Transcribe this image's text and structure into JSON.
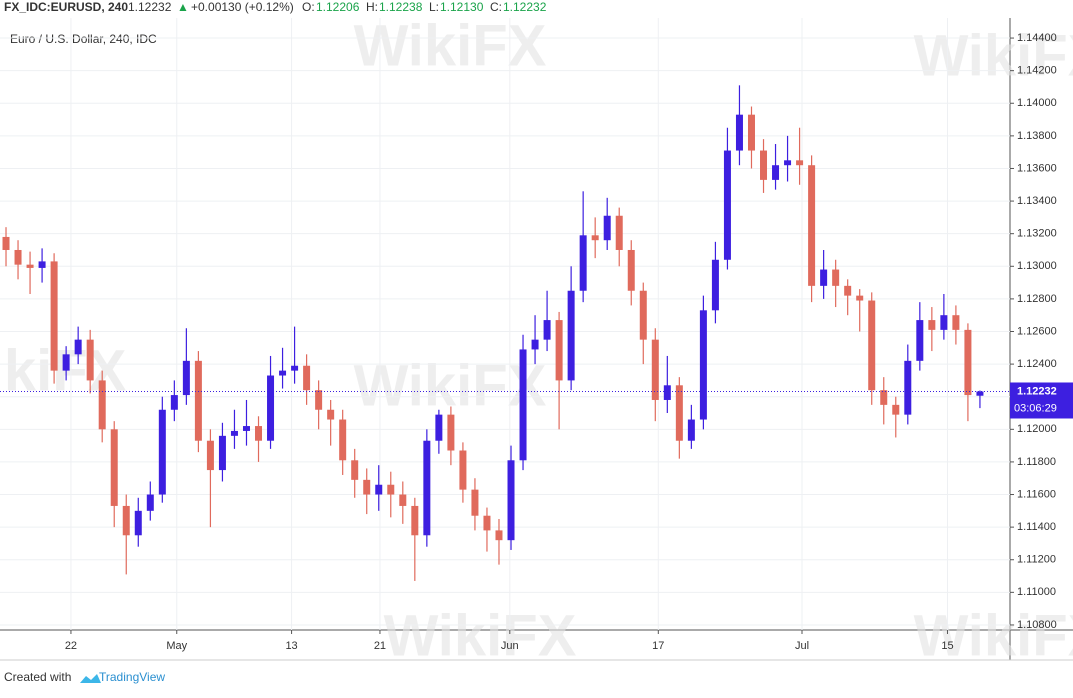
{
  "chart_data": {
    "type": "candlestick",
    "header": {
      "symbol": "FX_IDC:EURUSD, 240",
      "last": "1.12232",
      "arrow": "▲",
      "change": "+0.00130 (+0.12%)",
      "o_label": "O:",
      "o": "1.12206",
      "h_label": "H:",
      "h": "1.12238",
      "l_label": "L:",
      "l": "1.12130",
      "c_label": "C:",
      "c": "1.12232"
    },
    "title": "Euro / U.S. Dollar, 240, IDC",
    "watermark": "WikiFX",
    "countdown": "03:06:29",
    "footer": {
      "prefix": "Created with",
      "brand": "TradingView"
    },
    "up_color": "#3d1fe0",
    "down_color": "#e06a5c",
    "grid": true,
    "open": [
      1.1318,
      1.131,
      1.1301,
      1.1299,
      1.1303,
      1.1236,
      1.1246,
      1.1255,
      1.123,
      1.12,
      1.1153,
      1.1135,
      1.115,
      1.116,
      1.1212,
      1.1221,
      1.1242,
      1.1193,
      1.1175,
      1.1196,
      1.1199,
      1.1202,
      1.1193,
      1.1233,
      1.1236,
      1.1239,
      1.1224,
      1.1212,
      1.1206,
      1.1181,
      1.1169,
      1.116,
      1.1166,
      1.116,
      1.1153,
      1.1135,
      1.1193,
      1.1209,
      1.1187,
      1.1163,
      1.1147,
      1.1138,
      1.1132,
      1.1181,
      1.1249,
      1.1255,
      1.1267,
      1.123,
      1.1285,
      1.1319,
      1.1316,
      1.1331,
      1.131,
      1.1285,
      1.1255,
      1.1218,
      1.1227,
      1.1193,
      1.1206,
      1.1273,
      1.1304,
      1.1371,
      1.1393,
      1.1371,
      1.1353,
      1.1362,
      1.1365,
      1.1362,
      1.1288,
      1.1298,
      1.1288,
      1.1282,
      1.1279,
      1.1224,
      1.1215,
      1.1209,
      1.1242,
      1.1267,
      1.1261,
      1.127,
      1.1261,
      1.12206
    ],
    "high": [
      1.1324,
      1.1316,
      1.1309,
      1.1311,
      1.1308,
      1.1251,
      1.1263,
      1.1261,
      1.1236,
      1.1205,
      1.116,
      1.1158,
      1.1168,
      1.122,
      1.123,
      1.1262,
      1.1248,
      1.12,
      1.1204,
      1.1212,
      1.1218,
      1.1208,
      1.1245,
      1.125,
      1.1263,
      1.1246,
      1.123,
      1.1218,
      1.1212,
      1.1188,
      1.1176,
      1.1178,
      1.1174,
      1.1168,
      1.1158,
      1.12,
      1.1212,
      1.1214,
      1.1192,
      1.117,
      1.1152,
      1.1145,
      1.119,
      1.1258,
      1.127,
      1.1285,
      1.1272,
      1.13,
      1.1346,
      1.133,
      1.1342,
      1.1336,
      1.1316,
      1.129,
      1.1262,
      1.1245,
      1.1232,
      1.1215,
      1.1282,
      1.1315,
      1.1385,
      1.1411,
      1.1398,
      1.1378,
      1.1375,
      1.138,
      1.1385,
      1.1368,
      1.131,
      1.1304,
      1.1292,
      1.1286,
      1.1284,
      1.1232,
      1.122,
      1.1252,
      1.1278,
      1.1275,
      1.1283,
      1.1276,
      1.1265,
      1.12238
    ],
    "low": [
      1.13,
      1.1292,
      1.1283,
      1.129,
      1.1228,
      1.123,
      1.124,
      1.1222,
      1.1192,
      1.114,
      1.1111,
      1.1128,
      1.1144,
      1.1155,
      1.1205,
      1.1215,
      1.1186,
      1.114,
      1.1168,
      1.1188,
      1.119,
      1.118,
      1.1188,
      1.1225,
      1.1228,
      1.1215,
      1.12,
      1.119,
      1.1172,
      1.1158,
      1.1148,
      1.115,
      1.1146,
      1.1142,
      1.1107,
      1.1128,
      1.1185,
      1.1178,
      1.1155,
      1.1138,
      1.1125,
      1.1117,
      1.1126,
      1.1175,
      1.124,
      1.1248,
      1.12,
      1.1224,
      1.1278,
      1.1305,
      1.131,
      1.13,
      1.1276,
      1.124,
      1.1205,
      1.121,
      1.1182,
      1.1188,
      1.12,
      1.1265,
      1.1298,
      1.1362,
      1.136,
      1.1345,
      1.1347,
      1.1352,
      1.135,
      1.1278,
      1.128,
      1.1275,
      1.127,
      1.126,
      1.1215,
      1.1203,
      1.1195,
      1.1203,
      1.1236,
      1.1248,
      1.1255,
      1.1252,
      1.1205,
      1.1213
    ],
    "close": [
      1.131,
      1.1301,
      1.1299,
      1.1303,
      1.1236,
      1.1246,
      1.1255,
      1.123,
      1.12,
      1.1153,
      1.1135,
      1.115,
      1.116,
      1.1212,
      1.1221,
      1.1242,
      1.1193,
      1.1175,
      1.1196,
      1.1199,
      1.1202,
      1.1193,
      1.1233,
      1.1236,
      1.1239,
      1.1224,
      1.1212,
      1.1206,
      1.1181,
      1.1169,
      1.116,
      1.1166,
      1.116,
      1.1153,
      1.1135,
      1.1193,
      1.1209,
      1.1187,
      1.1163,
      1.1147,
      1.1138,
      1.1132,
      1.1181,
      1.1249,
      1.1255,
      1.1267,
      1.123,
      1.1285,
      1.1319,
      1.1316,
      1.1331,
      1.131,
      1.1285,
      1.1255,
      1.1218,
      1.1227,
      1.1193,
      1.1206,
      1.1273,
      1.1304,
      1.1371,
      1.1393,
      1.1371,
      1.1353,
      1.1362,
      1.1365,
      1.1362,
      1.1288,
      1.1298,
      1.1288,
      1.1282,
      1.1279,
      1.1224,
      1.1215,
      1.1209,
      1.1242,
      1.1267,
      1.1261,
      1.127,
      1.1261,
      1.1221,
      1.12232
    ],
    "xlim": [
      -0.5,
      83.5
    ],
    "xticks": [
      {
        "value": 5.4,
        "label": "22"
      },
      {
        "value": 14.2,
        "label": "May"
      },
      {
        "value": 23.75,
        "label": "13"
      },
      {
        "value": 31.1,
        "label": "21"
      },
      {
        "value": 41.9,
        "label": "Jun"
      },
      {
        "value": 54.25,
        "label": "17"
      },
      {
        "value": 66.2,
        "label": "Jul"
      },
      {
        "value": 78.3,
        "label": "15"
      }
    ],
    "ylim": [
      1.10769,
      1.14523
    ],
    "yticks": [
      {
        "value": 1.108,
        "label": "1.10800"
      },
      {
        "value": 1.11,
        "label": "1.11000"
      },
      {
        "value": 1.112,
        "label": "1.11200"
      },
      {
        "value": 1.114,
        "label": "1.11400"
      },
      {
        "value": 1.116,
        "label": "1.11600"
      },
      {
        "value": 1.118,
        "label": "1.11800"
      },
      {
        "value": 1.12,
        "label": "1.12000"
      },
      {
        "value": 1.122,
        "label": "1.12200"
      },
      {
        "value": 1.124,
        "label": "1.12400"
      },
      {
        "value": 1.126,
        "label": "1.12600"
      },
      {
        "value": 1.128,
        "label": "1.12800"
      },
      {
        "value": 1.13,
        "label": "1.13000"
      },
      {
        "value": 1.132,
        "label": "1.13200"
      },
      {
        "value": 1.134,
        "label": "1.13400"
      },
      {
        "value": 1.136,
        "label": "1.13600"
      },
      {
        "value": 1.138,
        "label": "1.13800"
      },
      {
        "value": 1.14,
        "label": "1.14000"
      },
      {
        "value": 1.142,
        "label": "1.14200"
      },
      {
        "value": 1.144,
        "label": "1.14400"
      }
    ]
  }
}
